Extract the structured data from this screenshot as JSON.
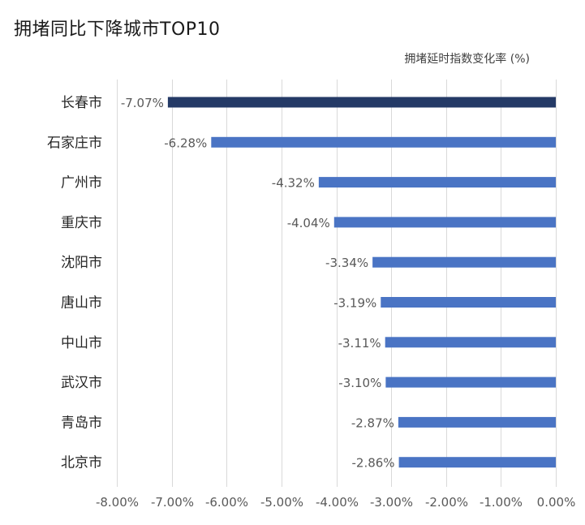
{
  "chart_data": {
    "type": "bar",
    "orientation": "horizontal",
    "title": "拥堵同比下降城市TOP10",
    "subtitle": "拥堵延时指数变化率 (%)",
    "categories": [
      "长春市",
      "石家庄市",
      "广州市",
      "重庆市",
      "沈阳市",
      "唐山市",
      "中山市",
      "武汉市",
      "青岛市",
      "北京市"
    ],
    "values": [
      -7.07,
      -6.28,
      -4.32,
      -4.04,
      -3.34,
      -3.19,
      -3.11,
      -3.1,
      -2.87,
      -2.86
    ],
    "value_labels": [
      "-7.07%",
      "-6.28%",
      "-4.32%",
      "-4.04%",
      "-3.34%",
      "-3.19%",
      "-3.11%",
      "-3.10%",
      "-2.87%",
      "-2.86%"
    ],
    "xlim": [
      -8,
      0
    ],
    "x_ticks": [
      -8,
      -7,
      -6,
      -5,
      -4,
      -3,
      -2,
      -1,
      0
    ],
    "x_tick_labels": [
      "-8.00%",
      "-7.00%",
      "-6.00%",
      "-5.00%",
      "-4.00%",
      "-3.00%",
      "-2.00%",
      "-1.00%",
      "0.00%"
    ],
    "grid": true,
    "colors": {
      "highlight": "#243a66",
      "default": "#4a74c4"
    }
  }
}
